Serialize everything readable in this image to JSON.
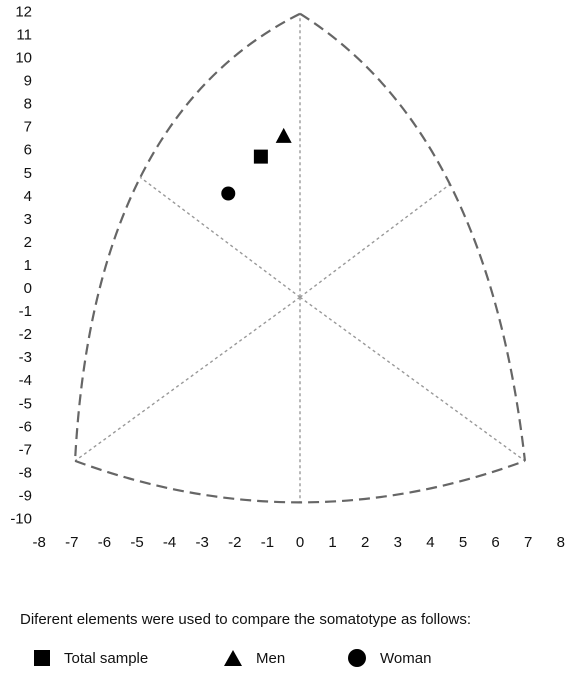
{
  "chart_data": {
    "type": "scatter",
    "title": "",
    "xlabel": "",
    "ylabel": "",
    "xlim": [
      -8,
      8
    ],
    "ylim": [
      -10,
      12
    ],
    "x_ticks": [
      -8,
      -7,
      -6,
      -5,
      -4,
      -3,
      -2,
      -1,
      0,
      1,
      2,
      3,
      4,
      5,
      6,
      7,
      8
    ],
    "y_ticks": [
      12,
      11,
      10,
      9,
      8,
      7,
      6,
      5,
      4,
      3,
      2,
      1,
      0,
      -1,
      -2,
      -3,
      -4,
      -5,
      -6,
      -7,
      -8,
      -9,
      -10
    ],
    "grid": false,
    "reuleaux_triangle": {
      "vertices": [
        [
          0,
          11.9
        ],
        [
          -6.9,
          -7.5
        ],
        [
          6.9,
          -7.5
        ]
      ],
      "center": [
        0,
        -0.4
      ],
      "edge_midpoints": [
        [
          -4.9,
          4.8
        ],
        [
          4.6,
          4.5
        ],
        [
          0,
          -9.3
        ]
      ]
    },
    "series": [
      {
        "name": "Total sample",
        "marker": "square",
        "x": -1.2,
        "y": 5.7
      },
      {
        "name": "Men",
        "marker": "triangle",
        "x": -0.5,
        "y": 6.6
      },
      {
        "name": "Woman",
        "marker": "circle",
        "x": -2.2,
        "y": 4.1
      }
    ],
    "caption": "Diferent elements were used to compare the somatotype as follows:",
    "colors": {
      "outline": "#666666",
      "inner": "#999999",
      "marker": "#000000"
    }
  }
}
